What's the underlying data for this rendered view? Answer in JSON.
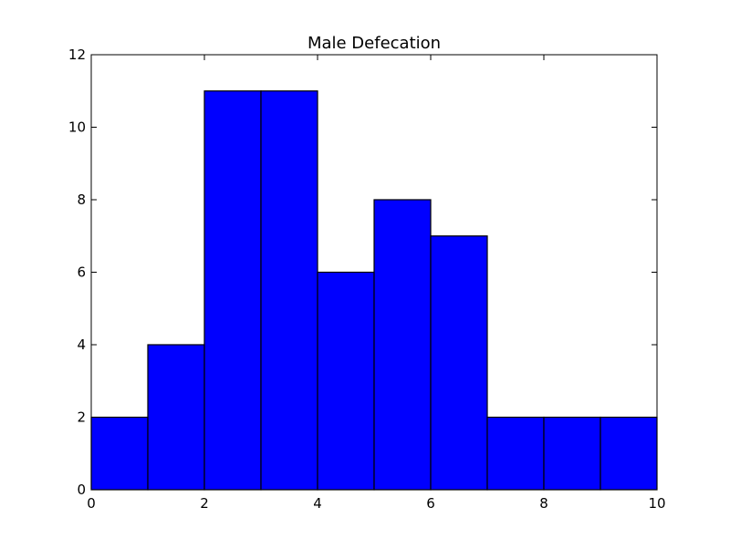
{
  "chart_data": {
    "type": "bar",
    "title": "Male Defecation",
    "xlabel": "",
    "ylabel": "",
    "bins": [
      [
        0,
        1
      ],
      [
        1,
        2
      ],
      [
        2,
        3
      ],
      [
        3,
        4
      ],
      [
        4,
        5
      ],
      [
        5,
        6
      ],
      [
        6,
        7
      ],
      [
        7,
        8
      ],
      [
        8,
        9
      ],
      [
        9,
        10
      ]
    ],
    "values": [
      2,
      4,
      11,
      11,
      6,
      8,
      7,
      2,
      2,
      2
    ],
    "xlim": [
      0,
      10
    ],
    "ylim": [
      0,
      12
    ],
    "xticks": [
      0,
      2,
      4,
      6,
      8,
      10
    ],
    "yticks": [
      0,
      2,
      4,
      6,
      8,
      10,
      12
    ],
    "grid": false,
    "bar_color": "#0000ff",
    "edge_color": "#000000"
  }
}
